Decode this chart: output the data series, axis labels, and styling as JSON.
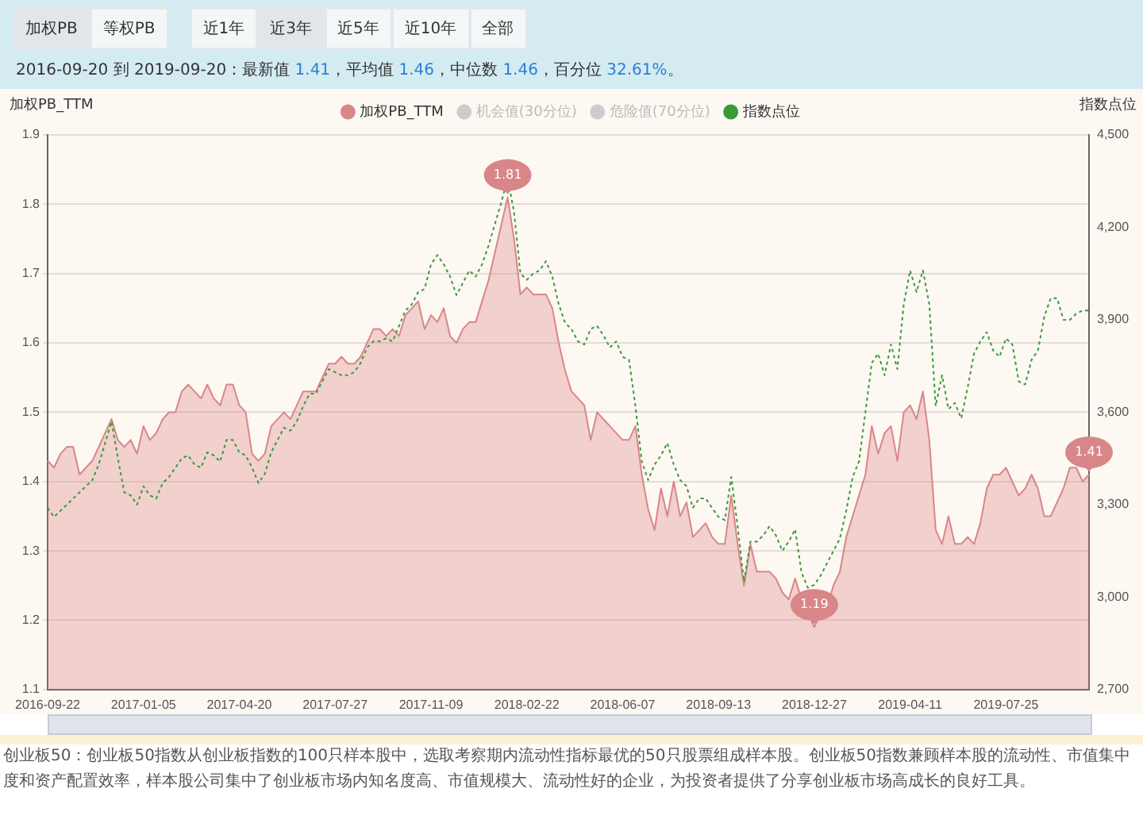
{
  "chart_data": {
    "type": "area",
    "title": "2016-09-20 到 2019-09-20：最新值 1.41，平均值 1.46，中位数 1.46，百分位 32.61%。",
    "ylabel": "加权PB_TTM",
    "y2label": "指数点位",
    "annotations": [
      "加权PB",
      "等权PB",
      "近1年",
      "近3年",
      "近5年",
      "近10年",
      "全部",
      {
        "text": "1.81",
        "y": 1.81
      },
      {
        "text": "1.19",
        "y": 1.19
      },
      {
        "text": "1.41",
        "y": 1.41
      },
      "创业板50：创业板50指数从创业板指数的100只样本股中，选取考察期内流动性指标最优的50只股票组成样本股。创业板50指数兼顾样本股的流动性、市值集中度和资产配置效率，样本股公司集中了创业板市场内知名度高、市值规模大、流动性好的企业，为投资者提供了分享创业板市场高成长的良好工具。"
    ],
    "categories": [
      "2016-09-22",
      null,
      null,
      null,
      null,
      null,
      null,
      null,
      null,
      null,
      null,
      null,
      null,
      null,
      null,
      "2017-01-05",
      null,
      null,
      null,
      null,
      null,
      null,
      null,
      null,
      null,
      null,
      null,
      null,
      null,
      null,
      "2017-04-20",
      null,
      null,
      null,
      null,
      null,
      null,
      null,
      null,
      null,
      null,
      null,
      null,
      null,
      null,
      "2017-07-27",
      null,
      null,
      null,
      null,
      null,
      null,
      null,
      null,
      null,
      null,
      null,
      null,
      null,
      null,
      "2017-11-09",
      null,
      null,
      null,
      null,
      null,
      null,
      null,
      null,
      null,
      null,
      null,
      null,
      null,
      null,
      "2018-02-22",
      null,
      null,
      null,
      null,
      null,
      null,
      null,
      null,
      null,
      null,
      null,
      null,
      null,
      null,
      "2018-06-07",
      null,
      null,
      null,
      null,
      null,
      null,
      null,
      null,
      null,
      null,
      null,
      null,
      null,
      null,
      "2018-09-13",
      null,
      null,
      null,
      null,
      null,
      null,
      null,
      null,
      null,
      null,
      null,
      null,
      null,
      null,
      "2018-12-27",
      null,
      null,
      null,
      null,
      null,
      null,
      null,
      null,
      null,
      null,
      null,
      null,
      null,
      null,
      "2019-04-11",
      null,
      null,
      null,
      null,
      null,
      null,
      null,
      null,
      null,
      null,
      null,
      null,
      null,
      null,
      "2019-07-25",
      null,
      null,
      null,
      null,
      null,
      null,
      null,
      null,
      null,
      null,
      null,
      null,
      null
    ],
    "series": [
      {
        "name": "加权PB_TTM",
        "color": "#d98689",
        "line_style": "solid",
        "values": [
          1.43,
          1.42,
          1.44,
          1.45,
          1.45,
          1.41,
          1.42,
          1.43,
          1.45,
          1.47,
          1.49,
          1.46,
          1.45,
          1.46,
          1.44,
          1.48,
          1.46,
          1.47,
          1.49,
          1.5,
          1.5,
          1.53,
          1.54,
          1.53,
          1.52,
          1.54,
          1.52,
          1.51,
          1.54,
          1.54,
          1.51,
          1.5,
          1.44,
          1.43,
          1.44,
          1.48,
          1.49,
          1.5,
          1.49,
          1.51,
          1.53,
          1.53,
          1.53,
          1.55,
          1.57,
          1.57,
          1.58,
          1.57,
          1.57,
          1.58,
          1.6,
          1.62,
          1.62,
          1.61,
          1.62,
          1.61,
          1.64,
          1.65,
          1.66,
          1.62,
          1.64,
          1.63,
          1.65,
          1.61,
          1.6,
          1.62,
          1.63,
          1.63,
          1.66,
          1.69,
          1.73,
          1.77,
          1.81,
          1.75,
          1.67,
          1.68,
          1.67,
          1.67,
          1.67,
          1.65,
          1.6,
          1.56,
          1.53,
          1.52,
          1.51,
          1.46,
          1.5,
          1.49,
          1.48,
          1.47,
          1.46,
          1.46,
          1.48,
          1.41,
          1.36,
          1.33,
          1.39,
          1.35,
          1.4,
          1.35,
          1.37,
          1.32,
          1.33,
          1.34,
          1.32,
          1.31,
          1.31,
          1.38,
          1.31,
          1.25,
          1.31,
          1.27,
          1.27,
          1.27,
          1.26,
          1.24,
          1.23,
          1.26,
          1.23,
          1.21,
          1.19,
          1.21,
          1.22,
          1.25,
          1.27,
          1.32,
          1.35,
          1.38,
          1.41,
          1.48,
          1.44,
          1.47,
          1.48,
          1.43,
          1.5,
          1.51,
          1.49,
          1.53,
          1.46,
          1.33,
          1.31,
          1.35,
          1.31,
          1.31,
          1.32,
          1.31,
          1.34,
          1.39,
          1.41,
          1.41,
          1.42,
          1.4,
          1.38,
          1.39,
          1.41,
          1.39,
          1.35,
          1.35,
          1.37,
          1.39,
          1.42,
          1.42,
          1.4,
          1.41
        ]
      },
      {
        "name": "机会值(30分位)",
        "type": "line",
        "color": "#cccccc",
        "values": [
          null,
          null,
          null,
          null,
          null,
          null,
          null,
          null,
          null,
          null,
          null,
          null,
          null,
          null,
          null,
          null,
          null,
          null,
          null,
          null,
          null,
          null,
          null,
          null,
          null,
          null,
          null,
          null,
          null,
          null,
          null,
          null,
          null,
          null,
          null,
          null,
          null,
          null,
          null,
          null,
          null,
          null,
          null,
          null,
          null,
          null,
          null,
          null,
          null,
          null,
          null,
          null,
          null,
          null,
          null,
          null,
          null,
          null,
          null,
          null,
          null,
          null,
          null,
          null,
          null,
          null,
          null,
          null,
          null,
          null,
          null,
          null,
          null,
          null,
          null,
          null,
          null,
          null,
          null,
          null,
          null,
          null,
          null,
          null,
          null,
          null,
          null,
          null,
          null,
          null,
          null,
          null,
          null,
          null,
          null,
          null,
          null,
          null,
          null,
          null,
          null,
          null,
          null,
          null,
          null,
          null,
          null,
          null,
          null,
          null,
          null,
          null,
          null,
          null,
          null,
          null,
          null,
          null,
          null,
          null,
          null,
          null,
          null,
          null,
          null,
          null,
          null,
          null,
          null,
          null,
          null,
          null,
          null,
          null,
          null,
          null,
          null,
          null,
          null,
          null,
          null,
          null,
          null,
          null,
          null,
          null,
          null,
          null,
          null,
          null,
          null,
          null,
          null,
          null,
          null,
          null,
          null,
          null,
          null,
          null,
          null,
          null,
          null,
          null
        ]
      },
      {
        "name": "危险值(70分位)",
        "type": "line",
        "color": "#cccccc",
        "values": [
          null,
          null,
          null,
          null,
          null,
          null,
          null,
          null,
          null,
          null,
          null,
          null,
          null,
          null,
          null,
          null,
          null,
          null,
          null,
          null,
          null,
          null,
          null,
          null,
          null,
          null,
          null,
          null,
          null,
          null,
          null,
          null,
          null,
          null,
          null,
          null,
          null,
          null,
          null,
          null,
          null,
          null,
          null,
          null,
          null,
          null,
          null,
          null,
          null,
          null,
          null,
          null,
          null,
          null,
          null,
          null,
          null,
          null,
          null,
          null,
          null,
          null,
          null,
          null,
          null,
          null,
          null,
          null,
          null,
          null,
          null,
          null,
          null,
          null,
          null,
          null,
          null,
          null,
          null,
          null,
          null,
          null,
          null,
          null,
          null,
          null,
          null,
          null,
          null,
          null,
          null,
          null,
          null,
          null,
          null,
          null,
          null,
          null,
          null,
          null,
          null,
          null,
          null,
          null,
          null,
          null,
          null,
          null,
          null,
          null,
          null,
          null,
          null,
          null,
          null,
          null,
          null,
          null,
          null,
          null,
          null,
          null,
          null,
          null,
          null,
          null,
          null,
          null,
          null,
          null,
          null,
          null,
          null,
          null,
          null,
          null,
          null,
          null,
          null,
          null,
          null,
          null,
          null,
          null,
          null,
          null,
          null,
          null,
          null,
          null,
          null,
          null,
          null,
          null,
          null,
          null,
          null,
          null,
          null,
          null,
          null,
          null,
          null,
          null
        ]
      },
      {
        "name": "指数点位",
        "type": "line",
        "axis": "y2",
        "color": "#3a9a3a",
        "line_style": "dotted",
        "values": [
          3290,
          3260,
          3280,
          3300,
          3320,
          3340,
          3360,
          3380,
          3430,
          3500,
          3570,
          3450,
          3340,
          3330,
          3300,
          3360,
          3330,
          3320,
          3370,
          3390,
          3420,
          3450,
          3460,
          3430,
          3420,
          3470,
          3460,
          3440,
          3510,
          3510,
          3470,
          3460,
          3420,
          3370,
          3400,
          3470,
          3510,
          3550,
          3540,
          3570,
          3620,
          3660,
          3660,
          3700,
          3740,
          3730,
          3720,
          3720,
          3730,
          3760,
          3810,
          3830,
          3830,
          3840,
          3830,
          3880,
          3930,
          3950,
          3990,
          4000,
          4080,
          4110,
          4080,
          4040,
          3980,
          4020,
          4060,
          4040,
          4080,
          4140,
          4210,
          4280,
          4360,
          4250,
          4050,
          4030,
          4050,
          4060,
          4090,
          4040,
          3950,
          3890,
          3870,
          3830,
          3820,
          3870,
          3880,
          3850,
          3810,
          3830,
          3780,
          3770,
          3620,
          3440,
          3380,
          3430,
          3460,
          3500,
          3430,
          3380,
          3360,
          3290,
          3320,
          3320,
          3290,
          3260,
          3250,
          3390,
          3230,
          3050,
          3180,
          3180,
          3200,
          3230,
          3200,
          3150,
          3180,
          3220,
          3080,
          3030,
          3040,
          3070,
          3110,
          3150,
          3190,
          3280,
          3390,
          3440,
          3600,
          3760,
          3790,
          3720,
          3820,
          3740,
          3950,
          4060,
          3990,
          4060,
          3950,
          3620,
          3720,
          3610,
          3630,
          3580,
          3680,
          3790,
          3830,
          3860,
          3800,
          3780,
          3840,
          3820,
          3700,
          3690,
          3770,
          3800,
          3910,
          3970,
          3970,
          3900,
          3900,
          3920,
          3930,
          3930
        ]
      }
    ],
    "ylim": [
      1.1,
      1.9
    ],
    "yticks": [
      1.1,
      1.2,
      1.3,
      1.4,
      1.5,
      1.6,
      1.7,
      1.8,
      1.9
    ],
    "y2lim": [
      2700,
      4500
    ],
    "y2ticks": [
      {
        "value": 2700,
        "label": "2,700"
      },
      {
        "value": 3000,
        "label": "3,000"
      },
      {
        "value": 3300,
        "label": "3,300"
      },
      {
        "value": 3600,
        "label": "3,600"
      },
      {
        "value": 3900,
        "label": "3,900"
      },
      {
        "value": 4200,
        "label": "4,200"
      },
      {
        "value": 4500,
        "label": "4,500"
      }
    ],
    "grid": "y",
    "legend": "top",
    "marker": "none"
  }
}
